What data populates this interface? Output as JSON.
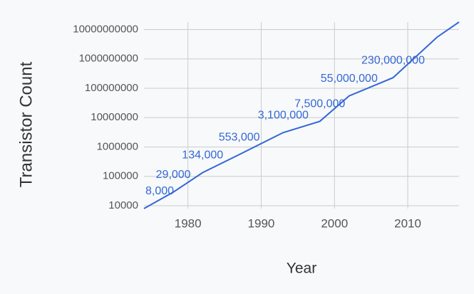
{
  "chart_data": {
    "type": "line",
    "x_label": "Year",
    "y_label": "Transistor Count",
    "x": [
      1974,
      1978,
      1982,
      1987,
      1993,
      1998,
      2002,
      2008,
      2014,
      2017
    ],
    "series": [
      {
        "color": "#3367d6",
        "values": [
          8000,
          29000,
          134000,
          553000,
          3100000,
          7500000,
          55000000,
          230000000,
          5500000000,
          18000000000
        ],
        "value_labels": [
          "8,000",
          "29,000",
          "134,000",
          "553,000",
          "3,100,000",
          "7,500,000",
          "55,000,000",
          "230,000,000",
          null,
          null
        ]
      }
    ],
    "xlim": [
      1974,
      2017
    ],
    "xticks": [
      1980,
      1990,
      2000,
      2010
    ],
    "ylim": [
      8000,
      18000000000
    ],
    "y_scale": "log",
    "yticks": [
      10000,
      100000,
      1000000,
      10000000,
      100000000,
      1000000000,
      10000000000
    ],
    "grid": true
  }
}
